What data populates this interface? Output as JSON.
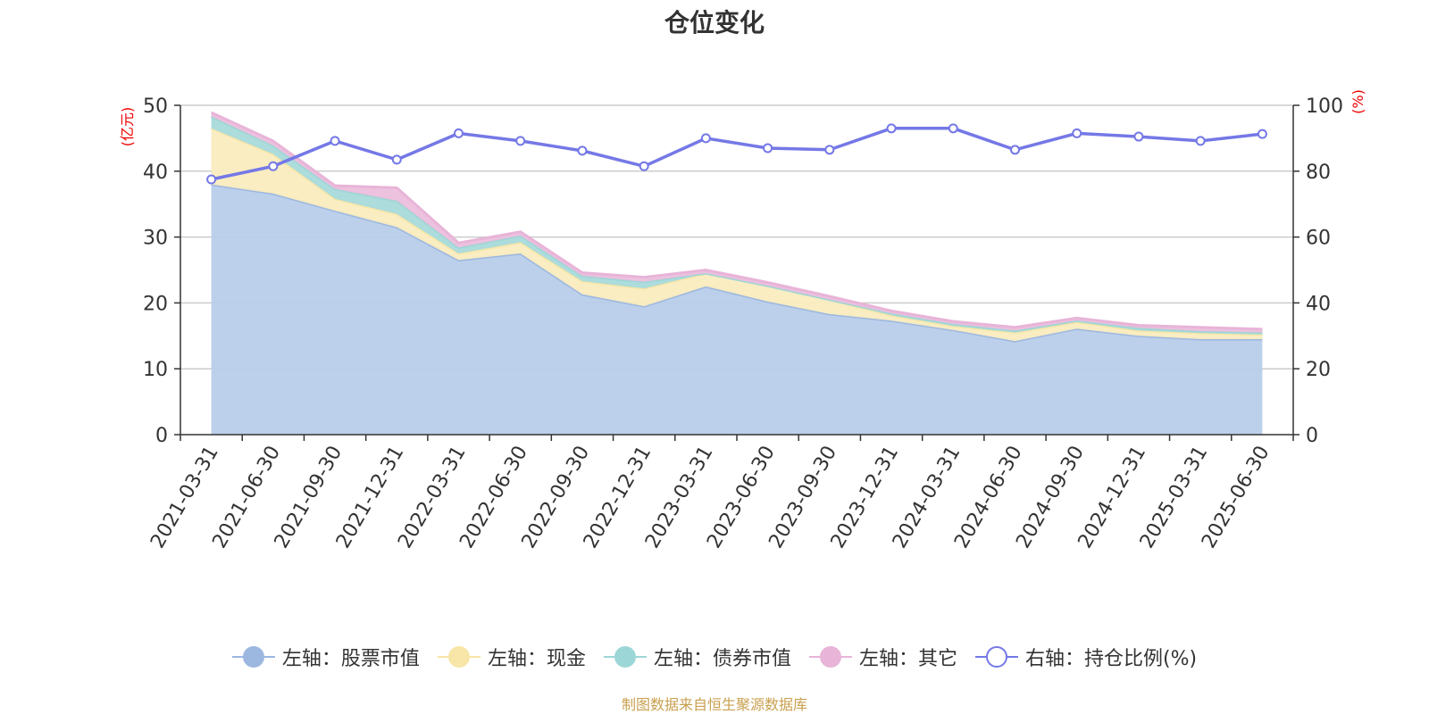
{
  "chart_data": {
    "type": "area",
    "title": "仓位变化",
    "left_axis_unit": "(亿元)",
    "right_axis_unit": "(%)",
    "left_ylim": [
      0,
      50
    ],
    "left_yticks": [
      0,
      10,
      20,
      30,
      40,
      50
    ],
    "right_ylim": [
      0,
      100
    ],
    "right_yticks": [
      0,
      20,
      40,
      60,
      80,
      100
    ],
    "grid": true,
    "legend_position": "bottom",
    "categories": [
      "2021-03-31",
      "2021-06-30",
      "2021-09-30",
      "2021-12-31",
      "2022-03-31",
      "2022-06-30",
      "2022-09-30",
      "2022-12-31",
      "2023-03-31",
      "2023-06-30",
      "2023-09-30",
      "2023-12-31",
      "2024-03-31",
      "2024-06-30",
      "2024-09-30",
      "2024-12-31",
      "2025-03-31",
      "2025-06-30"
    ],
    "stacked_series": [
      {
        "name": "左轴：股票市值",
        "color": "#9cb7e0",
        "fill": "#b8cdea",
        "values": [
          38.0,
          36.6,
          34.0,
          31.5,
          26.5,
          27.5,
          21.3,
          19.5,
          22.5,
          20.2,
          18.3,
          17.3,
          15.9,
          14.2,
          16.1,
          15.0,
          14.5,
          14.5
        ]
      },
      {
        "name": "左轴：现金",
        "color": "#f7e6a7",
        "fill": "#faecbf",
        "values": [
          8.5,
          6.0,
          1.8,
          2.0,
          1.0,
          1.7,
          2.0,
          2.7,
          2.0,
          2.4,
          2.2,
          0.8,
          0.6,
          1.3,
          1.0,
          0.8,
          0.9,
          0.7
        ]
      },
      {
        "name": "左轴：债券市值",
        "color": "#9dd6d6",
        "fill": "#a9dadb",
        "values": [
          1.8,
          1.3,
          1.5,
          2.0,
          0.9,
          1.0,
          0.8,
          1.0,
          0.0,
          0.0,
          0.0,
          0.3,
          0.3,
          0.3,
          0.2,
          0.4,
          0.3,
          0.3
        ]
      },
      {
        "name": "左轴：其它",
        "color": "#e8b4d8",
        "fill": "#ebbfdd",
        "values": [
          0.6,
          0.7,
          0.5,
          2.0,
          0.7,
          0.6,
          0.5,
          0.7,
          0.5,
          0.5,
          0.5,
          0.4,
          0.4,
          0.5,
          0.4,
          0.4,
          0.6,
          0.5
        ]
      }
    ],
    "line_series": {
      "name": "右轴：持仓比例(%)",
      "color": "#7478e6",
      "axis": "right",
      "values": [
        77.5,
        81.5,
        89.2,
        83.5,
        91.5,
        89.2,
        86.2,
        81.5,
        90.0,
        87.0,
        86.5,
        93.0,
        93.0,
        86.5,
        91.5,
        90.5,
        89.2,
        91.3
      ]
    },
    "source": "制图数据来自恒生聚源数据库"
  }
}
